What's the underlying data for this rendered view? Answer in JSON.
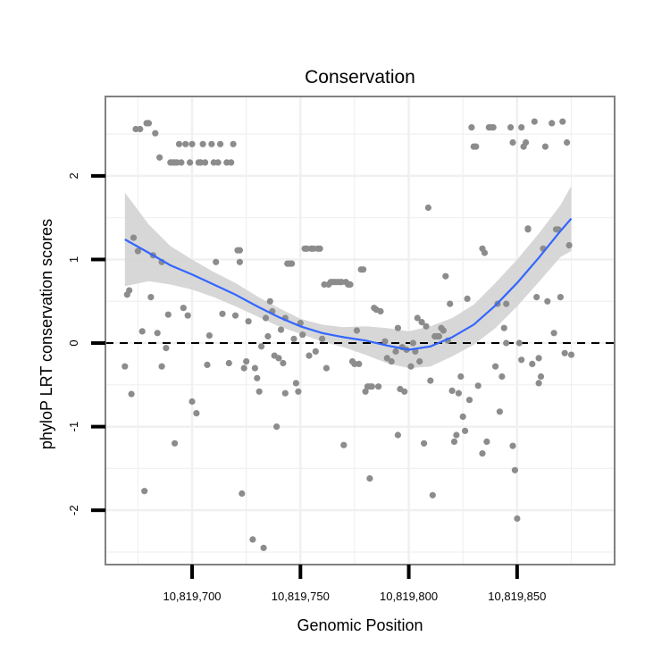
{
  "chart_data": {
    "type": "scatter",
    "title": "Conservation",
    "xlabel": "Genomic Position",
    "ylabel": "phyloP LRT conservation scores",
    "xlim": [
      10819660,
      10819895
    ],
    "ylim": [
      -2.65,
      2.95
    ],
    "x_ticks": [
      10819700,
      10819750,
      10819800,
      10819850
    ],
    "x_tick_labels": [
      "10,819,700",
      "10,819,750",
      "10,819,800",
      "10,819,850"
    ],
    "y_ticks": [
      2,
      1,
      0,
      -1,
      -2
    ],
    "y_tick_labels": [
      "2",
      "1",
      "0",
      "-1",
      "-2"
    ],
    "reference_line": {
      "y": 0,
      "style": "dashed"
    },
    "grid": true,
    "colors": {
      "points": "#8c8c8c",
      "smooth_line": "#3366ff",
      "ribbon": "#d3d3d3",
      "panel_border": "#808080",
      "grid": "#f0f0f0"
    },
    "series": [
      {
        "name": "scores",
        "points": [
          [
            10819669,
            -0.28
          ],
          [
            10819670,
            0.58
          ],
          [
            10819671,
            0.63
          ],
          [
            10819672,
            -0.61
          ],
          [
            10819673,
            1.26
          ],
          [
            10819674,
            2.56
          ],
          [
            10819675,
            1.1
          ],
          [
            10819676,
            2.56
          ],
          [
            10819677,
            0.14
          ],
          [
            10819678,
            -1.77
          ],
          [
            10819679,
            2.63
          ],
          [
            10819680,
            2.63
          ],
          [
            10819681,
            0.55
          ],
          [
            10819682,
            1.05
          ],
          [
            10819683,
            2.51
          ],
          [
            10819684,
            0.12
          ],
          [
            10819685,
            2.22
          ],
          [
            10819686,
            0.97
          ],
          [
            10819686,
            -0.28
          ],
          [
            10819688,
            -0.06
          ],
          [
            10819689,
            0.34
          ],
          [
            10819690,
            2.16
          ],
          [
            10819691,
            2.16
          ],
          [
            10819692,
            2.16
          ],
          [
            10819692,
            -1.2
          ],
          [
            10819693,
            2.16
          ],
          [
            10819694,
            2.38
          ],
          [
            10819695,
            2.16
          ],
          [
            10819696,
            0.42
          ],
          [
            10819697,
            2.38
          ],
          [
            10819698,
            0.33
          ],
          [
            10819699,
            2.16
          ],
          [
            10819700,
            2.38
          ],
          [
            10819700,
            -0.7
          ],
          [
            10819702,
            -0.84
          ],
          [
            10819703,
            2.16
          ],
          [
            10819704,
            2.16
          ],
          [
            10819705,
            2.38
          ],
          [
            10819706,
            2.16
          ],
          [
            10819707,
            -0.26
          ],
          [
            10819708,
            0.09
          ],
          [
            10819709,
            2.38
          ],
          [
            10819710,
            2.16
          ],
          [
            10819711,
            0.97
          ],
          [
            10819712,
            2.16
          ],
          [
            10819713,
            2.38
          ],
          [
            10819714,
            0.35
          ],
          [
            10819716,
            2.16
          ],
          [
            10819717,
            -0.24
          ],
          [
            10819718,
            2.16
          ],
          [
            10819719,
            2.38
          ],
          [
            10819720,
            0.33
          ],
          [
            10819721,
            1.11
          ],
          [
            10819722,
            0.97
          ],
          [
            10819722,
            1.11
          ],
          [
            10819723,
            -1.8
          ],
          [
            10819724,
            -0.3
          ],
          [
            10819725,
            -0.22
          ],
          [
            10819726,
            0.26
          ],
          [
            10819728,
            -2.35
          ],
          [
            10819729,
            -0.3
          ],
          [
            10819730,
            -0.42
          ],
          [
            10819731,
            -0.58
          ],
          [
            10819732,
            -0.04
          ],
          [
            10819733,
            -2.45
          ],
          [
            10819734,
            0.3
          ],
          [
            10819735,
            0.08
          ],
          [
            10819736,
            0.5
          ],
          [
            10819737,
            0.38
          ],
          [
            10819738,
            -0.15
          ],
          [
            10819739,
            -1.0
          ],
          [
            10819740,
            -0.18
          ],
          [
            10819741,
            0.16
          ],
          [
            10819742,
            -0.24
          ],
          [
            10819743,
            0.3
          ],
          [
            10819743,
            -0.6
          ],
          [
            10819744,
            0.95
          ],
          [
            10819745,
            0.95
          ],
          [
            10819746,
            0.95
          ],
          [
            10819747,
            0.05
          ],
          [
            10819748,
            -0.48
          ],
          [
            10819749,
            -0.58
          ],
          [
            10819750,
            0.24
          ],
          [
            10819751,
            0.1
          ],
          [
            10819752,
            1.13
          ],
          [
            10819753,
            1.13
          ],
          [
            10819754,
            -0.15
          ],
          [
            10819755,
            1.13
          ],
          [
            10819756,
            1.13
          ],
          [
            10819757,
            -0.1
          ],
          [
            10819758,
            1.13
          ],
          [
            10819759,
            1.13
          ],
          [
            10819760,
            0.05
          ],
          [
            10819761,
            0.7
          ],
          [
            10819762,
            -0.3
          ],
          [
            10819763,
            0.7
          ],
          [
            10819764,
            0.73
          ],
          [
            10819765,
            0.73
          ],
          [
            10819766,
            0.73
          ],
          [
            10819767,
            0.73
          ],
          [
            10819768,
            0.73
          ],
          [
            10819769,
            0.73
          ],
          [
            10819770,
            -1.22
          ],
          [
            10819771,
            0.73
          ],
          [
            10819772,
            0.7
          ],
          [
            10819773,
            0.7
          ],
          [
            10819774,
            -0.22
          ],
          [
            10819775,
            -0.25
          ],
          [
            10819776,
            0.15
          ],
          [
            10819777,
            -0.25
          ],
          [
            10819778,
            0.88
          ],
          [
            10819779,
            0.88
          ],
          [
            10819780,
            -0.58
          ],
          [
            10819781,
            -0.52
          ],
          [
            10819782,
            -0.52
          ],
          [
            10819782,
            -1.62
          ],
          [
            10819783,
            -0.52
          ],
          [
            10819784,
            0.42
          ],
          [
            10819785,
            0.4
          ],
          [
            10819786,
            -0.52
          ],
          [
            10819787,
            0.38
          ],
          [
            10819789,
            0.02
          ],
          [
            10819790,
            -0.18
          ],
          [
            10819792,
            -0.22
          ],
          [
            10819794,
            -0.1
          ],
          [
            10819795,
            0.18
          ],
          [
            10819795,
            -1.1
          ],
          [
            10819796,
            -0.55
          ],
          [
            10819797,
            -0.05
          ],
          [
            10819798,
            -0.58
          ],
          [
            10819799,
            -0.08
          ],
          [
            10819801,
            -0.28
          ],
          [
            10819802,
            0.0
          ],
          [
            10819803,
            -0.1
          ],
          [
            10819804,
            0.3
          ],
          [
            10819805,
            -0.22
          ],
          [
            10819806,
            0.25
          ],
          [
            10819807,
            -1.2
          ],
          [
            10819808,
            0.2
          ],
          [
            10819809,
            1.62
          ],
          [
            10819810,
            -0.45
          ],
          [
            10819811,
            -1.82
          ],
          [
            10819812,
            0.08
          ],
          [
            10819813,
            0.08
          ],
          [
            10819814,
            0.08
          ],
          [
            10819815,
            0.18
          ],
          [
            10819816,
            0.15
          ],
          [
            10819817,
            0.8
          ],
          [
            10819818,
            0.03
          ],
          [
            10819819,
            0.47
          ],
          [
            10819820,
            -0.57
          ],
          [
            10819821,
            -1.18
          ],
          [
            10819822,
            -1.1
          ],
          [
            10819823,
            -0.6
          ],
          [
            10819824,
            -0.4
          ],
          [
            10819825,
            -0.88
          ],
          [
            10819826,
            -1.05
          ],
          [
            10819827,
            0.53
          ],
          [
            10819828,
            -0.68
          ],
          [
            10819829,
            2.58
          ],
          [
            10819830,
            2.35
          ],
          [
            10819831,
            2.35
          ],
          [
            10819832,
            -0.51
          ],
          [
            10819834,
            -1.32
          ],
          [
            10819834,
            1.13
          ],
          [
            10819835,
            1.08
          ],
          [
            10819836,
            -1.18
          ],
          [
            10819837,
            2.58
          ],
          [
            10819838,
            2.58
          ],
          [
            10819839,
            2.58
          ],
          [
            10819840,
            -0.28
          ],
          [
            10819841,
            0.47
          ],
          [
            10819842,
            -0.82
          ],
          [
            10819843,
            -0.4
          ],
          [
            10819844,
            0.18
          ],
          [
            10819845,
            0.0
          ],
          [
            10819845,
            0.47
          ],
          [
            10819847,
            2.58
          ],
          [
            10819848,
            2.4
          ],
          [
            10819848,
            -1.23
          ],
          [
            10819849,
            -1.52
          ],
          [
            10819850,
            -2.1
          ],
          [
            10819851,
            0.0
          ],
          [
            10819852,
            2.58
          ],
          [
            10819852,
            -0.2
          ],
          [
            10819853,
            2.35
          ],
          [
            10819854,
            2.4
          ],
          [
            10819855,
            1.36
          ],
          [
            10819855,
            1.37
          ],
          [
            10819857,
            -0.25
          ],
          [
            10819858,
            2.65
          ],
          [
            10819859,
            0.55
          ],
          [
            10819860,
            -0.18
          ],
          [
            10819860,
            -0.48
          ],
          [
            10819861,
            -0.4
          ],
          [
            10819862,
            1.13
          ],
          [
            10819863,
            2.35
          ],
          [
            10819864,
            0.5
          ],
          [
            10819866,
            2.63
          ],
          [
            10819867,
            0.12
          ],
          [
            10819868,
            1.36
          ],
          [
            10819869,
            1.36
          ],
          [
            10819870,
            0.55
          ],
          [
            10819871,
            2.65
          ],
          [
            10819872,
            -0.12
          ],
          [
            10819873,
            2.4
          ],
          [
            10819874,
            1.17
          ],
          [
            10819875,
            -0.14
          ]
        ]
      }
    ],
    "smooth_line": {
      "x": [
        10819669,
        10819680,
        10819690,
        10819700,
        10819710,
        10819720,
        10819730,
        10819740,
        10819750,
        10819760,
        10819770,
        10819780,
        10819790,
        10819800,
        10819810,
        10819820,
        10819830,
        10819840,
        10819850,
        10819860,
        10819870,
        10819875
      ],
      "y": [
        1.24,
        1.08,
        0.93,
        0.82,
        0.7,
        0.58,
        0.44,
        0.31,
        0.2,
        0.12,
        0.07,
        0.03,
        -0.03,
        -0.08,
        -0.04,
        0.07,
        0.22,
        0.45,
        0.72,
        1.02,
        1.34,
        1.49
      ],
      "lower": [
        0.68,
        0.74,
        0.7,
        0.64,
        0.55,
        0.44,
        0.32,
        0.2,
        0.11,
        0.02,
        -0.05,
        -0.14,
        -0.24,
        -0.3,
        -0.28,
        -0.16,
        -0.02,
        0.18,
        0.44,
        0.73,
        1.03,
        1.1
      ],
      "upper": [
        1.8,
        1.42,
        1.16,
        1.0,
        0.85,
        0.72,
        0.56,
        0.42,
        0.29,
        0.22,
        0.19,
        0.2,
        0.18,
        0.14,
        0.2,
        0.3,
        0.46,
        0.72,
        1.0,
        1.31,
        1.65,
        1.88
      ]
    }
  }
}
